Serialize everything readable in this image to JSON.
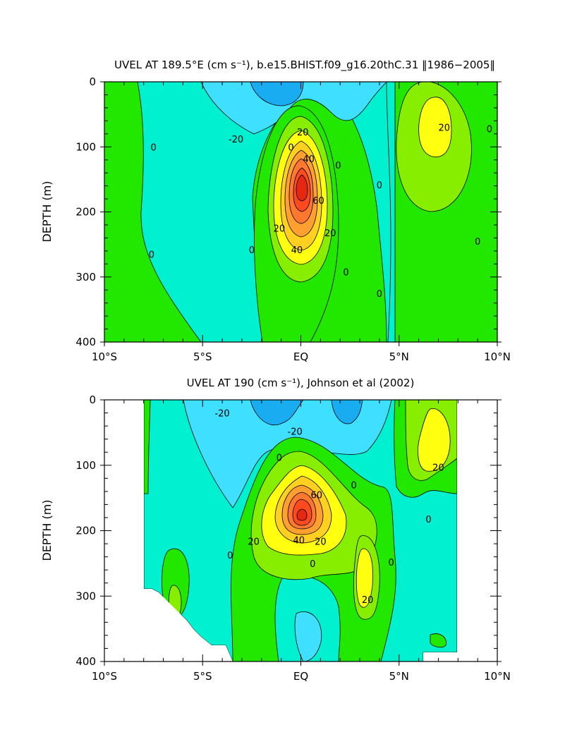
{
  "chart_data": [
    {
      "type": "heatmap",
      "panel": "top",
      "title": "UVEL AT 189.5°E (cm s⁻¹), b.e15.BHIST.f09_g16.20thC.31 ‖1986−2005‖",
      "ylabel": "DEPTH (m)",
      "xlabel": "",
      "xlim": [
        -10,
        10
      ],
      "ylim": [
        400,
        0
      ],
      "x_ticks": [
        {
          "value": -10,
          "label": "10°S"
        },
        {
          "value": -5,
          "label": "5°S"
        },
        {
          "value": 0,
          "label": "EQ"
        },
        {
          "value": 5,
          "label": "5°N"
        },
        {
          "value": 10,
          "label": "10°N"
        }
      ],
      "y_ticks": [
        0,
        100,
        200,
        300,
        400
      ],
      "levels": [
        -30,
        -20,
        -10,
        0,
        10,
        20,
        30,
        40,
        50,
        60,
        70
      ],
      "level_colors": [
        "#1aacf0",
        "#3fe0ff",
        "#00f0d0",
        "#22e800",
        "#88ee00",
        "#ffff10",
        "#ffd020",
        "#ffa030",
        "#ff7830",
        "#ff4a20",
        "#e62810"
      ],
      "features": [
        {
          "name": "equatorial-undercurrent",
          "lon": 0.0,
          "depth": 160,
          "max": 70
        },
        {
          "name": "surface-westward-flow",
          "lon": -1.0,
          "depth": 0,
          "min": -30
        },
        {
          "name": "necc-core",
          "lon": 6.8,
          "depth": 70,
          "max": 25
        }
      ],
      "contour_labels": [
        {
          "text": "0",
          "lon": -7.5,
          "depth": 100
        },
        {
          "text": "-20",
          "lon": -3.3,
          "depth": 88
        },
        {
          "text": "20",
          "lon": 0.1,
          "depth": 77
        },
        {
          "text": "0",
          "lon": -0.5,
          "depth": 100
        },
        {
          "text": "40",
          "lon": 0.4,
          "depth": 118
        },
        {
          "text": "0",
          "lon": 1.9,
          "depth": 128
        },
        {
          "text": "0",
          "lon": 4.0,
          "depth": 158
        },
        {
          "text": "20",
          "lon": 7.3,
          "depth": 70
        },
        {
          "text": "0",
          "lon": 9.6,
          "depth": 72
        },
        {
          "text": "60",
          "lon": 0.9,
          "depth": 182
        },
        {
          "text": "20",
          "lon": -1.1,
          "depth": 225
        },
        {
          "text": "40",
          "lon": -0.2,
          "depth": 258
        },
        {
          "text": "20",
          "lon": 1.5,
          "depth": 232
        },
        {
          "text": "0",
          "lon": -2.5,
          "depth": 258
        },
        {
          "text": "0",
          "lon": 2.3,
          "depth": 292
        },
        {
          "text": "0",
          "lon": 4.0,
          "depth": 325
        },
        {
          "text": "0",
          "lon": 9.0,
          "depth": 245
        },
        {
          "text": "0",
          "lon": -7.6,
          "depth": 265
        }
      ]
    },
    {
      "type": "heatmap",
      "panel": "bottom",
      "title": "UVEL AT 190 (cm s⁻¹), Johnson et al (2002)",
      "ylabel": "DEPTH (m)",
      "xlabel": "",
      "xlim": [
        -10,
        10
      ],
      "ylim": [
        400,
        0
      ],
      "x_ticks": [
        {
          "value": -10,
          "label": "10°S"
        },
        {
          "value": -5,
          "label": "5°S"
        },
        {
          "value": 0,
          "label": "EQ"
        },
        {
          "value": 5,
          "label": "5°N"
        },
        {
          "value": 10,
          "label": "10°N"
        }
      ],
      "y_ticks": [
        0,
        100,
        200,
        300,
        400
      ],
      "data_extent_lon": [
        -8,
        8
      ],
      "levels": [
        -30,
        -20,
        -10,
        0,
        10,
        20,
        30,
        40,
        50,
        60,
        70
      ],
      "level_colors": [
        "#1aacf0",
        "#3fe0ff",
        "#00f0d0",
        "#22e800",
        "#88ee00",
        "#ffff10",
        "#ffd020",
        "#ffa030",
        "#ff7830",
        "#ff4a20",
        "#e62810"
      ],
      "features": [
        {
          "name": "equatorial-undercurrent",
          "lon": 0.1,
          "depth": 148,
          "max": 70
        },
        {
          "name": "surface-westward-flow",
          "lon": 2.0,
          "depth": 20,
          "min": -30
        },
        {
          "name": "necc-core",
          "lon": 6.3,
          "depth": 80,
          "max": 22
        },
        {
          "name": "subsurface-jet",
          "lon": 3.2,
          "depth": 270,
          "max": 22
        }
      ],
      "contour_labels": [
        {
          "text": "-20",
          "lon": -4.0,
          "depth": 20
        },
        {
          "text": "-20",
          "lon": -0.3,
          "depth": 48
        },
        {
          "text": "0",
          "lon": -1.1,
          "depth": 88
        },
        {
          "text": "0",
          "lon": 2.7,
          "depth": 130
        },
        {
          "text": "60",
          "lon": 0.8,
          "depth": 145
        },
        {
          "text": "20",
          "lon": -2.4,
          "depth": 216
        },
        {
          "text": "40",
          "lon": -0.1,
          "depth": 214
        },
        {
          "text": "20",
          "lon": 1.0,
          "depth": 216
        },
        {
          "text": "0",
          "lon": -3.6,
          "depth": 237
        },
        {
          "text": "0",
          "lon": 0.6,
          "depth": 250
        },
        {
          "text": "0",
          "lon": 4.6,
          "depth": 248
        },
        {
          "text": "20",
          "lon": 3.4,
          "depth": 305
        },
        {
          "text": "20",
          "lon": 7.0,
          "depth": 103
        },
        {
          "text": "0",
          "lon": 6.5,
          "depth": 182
        }
      ]
    }
  ]
}
